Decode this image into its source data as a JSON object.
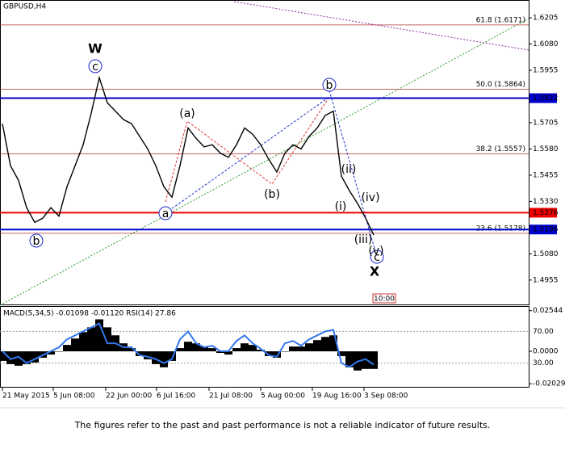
{
  "chart_data": {
    "type": "line",
    "title": "GBPUSD,H4",
    "values": [
      1.57,
      1.55,
      1.543,
      1.53,
      1.523,
      1.525,
      1.53,
      1.526,
      1.54,
      1.55,
      1.56,
      1.575,
      1.592,
      1.58,
      1.576,
      1.572,
      1.57,
      1.564,
      1.558,
      1.55,
      1.54,
      1.535,
      1.55,
      1.568,
      1.563,
      1.559,
      1.56,
      1.556,
      1.554,
      1.56,
      1.568,
      1.565,
      1.56,
      1.553,
      1.547,
      1.556,
      1.56,
      1.558,
      1.564,
      1.568,
      1.574,
      1.576,
      1.545,
      1.538,
      1.532,
      1.525,
      1.517
    ],
    "color": "#000000",
    "ylim": [
      1.4835,
      1.6286
    ],
    "yticks": [
      {
        "value": 1.6205,
        "label": "1.6205"
      },
      {
        "value": 1.608,
        "label": "1.6080"
      },
      {
        "value": 1.5955,
        "label": "1.5955"
      },
      {
        "value": 1.5705,
        "label": "1.5705"
      },
      {
        "value": 1.558,
        "label": "1.5580"
      },
      {
        "value": 1.5455,
        "label": "1.5455"
      },
      {
        "value": 1.533,
        "label": "1.5330"
      },
      {
        "value": 1.508,
        "label": "1.5080"
      },
      {
        "value": 1.4955,
        "label": "1.4955"
      }
    ],
    "xticks": [
      {
        "value": 0,
        "label": "21 May 2015"
      },
      {
        "value": 6.3,
        "label": "5 Jun 08:00"
      },
      {
        "value": 12.8,
        "label": "22 Jun 00:00"
      },
      {
        "value": 19.1,
        "label": "6 Jul 16:00"
      },
      {
        "value": 25.6,
        "label": "21 Jul 08:00"
      },
      {
        "value": 32,
        "label": "5 Aug 00:00"
      },
      {
        "value": 38.4,
        "label": "19 Aug 16:00"
      },
      {
        "value": 44.8,
        "label": "3 Sep 08:00"
      }
    ],
    "fib_levels": [
      {
        "value": 1.6171,
        "label": "61.8 (1.6171)"
      },
      {
        "value": 1.5864,
        "label": "50.0 (1.5864)"
      },
      {
        "value": 1.5557,
        "label": "38.2 (1.5557)"
      },
      {
        "value": 1.5178,
        "label": "23.6 (1.5178)"
      }
    ],
    "price_lines": [
      {
        "value": 1.5822,
        "color": "#0000cc"
      },
      {
        "value": 1.5276,
        "color": "#ee0000"
      },
      {
        "value": 1.5196,
        "color": "#0000cc"
      }
    ],
    "wave_labels": [
      "W",
      "X",
      "c",
      "b",
      "a",
      "b",
      "c",
      "(a)",
      "(b)",
      "(i)",
      "(ii)",
      "(iii)",
      "(iv)",
      "(v)"
    ],
    "time_marker": "10:00",
    "indicator": {
      "title": "MACD(5,34,5) -0.01098 -0.01120 RSI(14) 27.86",
      "macd": [
        -0.006,
        -0.008,
        -0.009,
        -0.008,
        -0.007,
        -0.004,
        -0.002,
        0.0,
        0.004,
        0.008,
        0.012,
        0.015,
        0.02,
        0.015,
        0.01,
        0.005,
        0.002,
        -0.003,
        -0.005,
        -0.008,
        -0.01,
        -0.006,
        0.002,
        0.006,
        0.005,
        0.003,
        0.002,
        -0.001,
        -0.002,
        0.002,
        0.005,
        0.004,
        0.001,
        -0.003,
        -0.004,
        0.0,
        0.003,
        0.003,
        0.005,
        0.007,
        0.009,
        0.01,
        -0.003,
        -0.01,
        -0.012,
        -0.011,
        -0.011
      ],
      "rsi": [
        45,
        35,
        38,
        30,
        35,
        40,
        45,
        50,
        60,
        65,
        70,
        75,
        80,
        55,
        55,
        50,
        50,
        40,
        38,
        35,
        30,
        35,
        60,
        70,
        55,
        50,
        52,
        45,
        45,
        58,
        65,
        55,
        48,
        40,
        38,
        55,
        58,
        52,
        60,
        65,
        70,
        72,
        30,
        25,
        32,
        35,
        28
      ],
      "rsi_color": "#3377ee",
      "macd_lim": [
        -0.0222,
        0.0273
      ],
      "macd_ticks": [
        {
          "value": 0.02544,
          "label": "0.02544"
        },
        {
          "value": 0,
          "label": "0.0000"
        },
        {
          "value": -0.02029,
          "label": "-0.02029"
        }
      ],
      "rsi_lim": [
        0,
        100
      ],
      "rsi_ticks": [
        {
          "value": 70,
          "label": "70.00"
        },
        {
          "value": 30,
          "label": "30.00"
        }
      ]
    },
    "disclaimer": "The figures refer to the past and past performance is not a reliable indicator of future results."
  }
}
